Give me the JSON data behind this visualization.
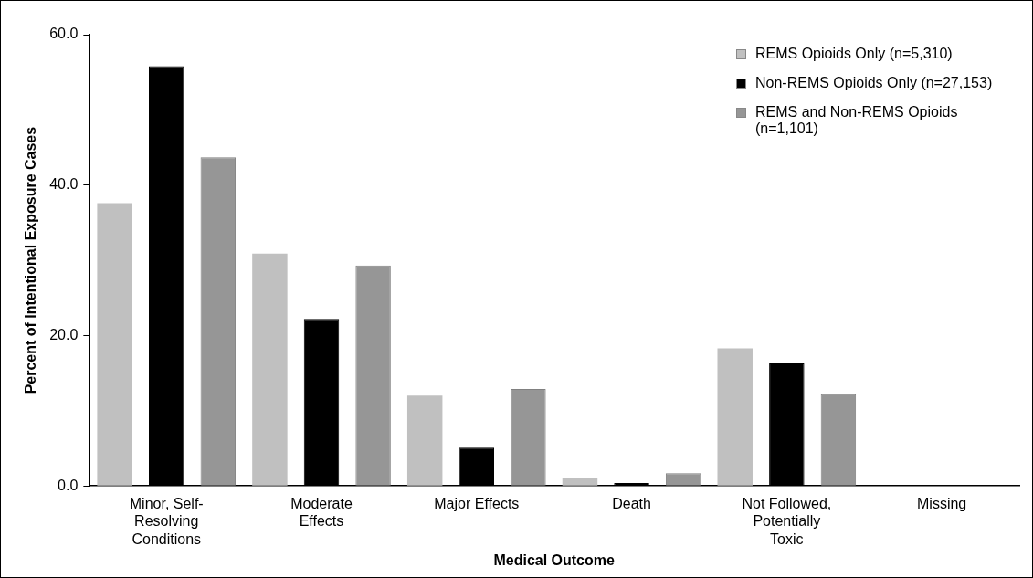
{
  "chart_data": {
    "type": "bar",
    "xlabel": "Medical Outcome",
    "ylabel": "Percent of Intentional Exposure Cases",
    "categories": [
      "Minor, Self-Resolving Conditions",
      "Moderate Effects",
      "Major Effects",
      "Death",
      "Not Followed, Potentially Toxic",
      "Missing"
    ],
    "series": [
      {
        "name": "REMS Opioids Only (n=5,310)",
        "color": "#c0c0c0",
        "values": [
          37.6,
          30.9,
          12.0,
          1.0,
          18.3,
          0
        ]
      },
      {
        "name": "Non-REMS Opioids Only (n=27,153)",
        "color": "#000000",
        "values": [
          55.8,
          22.2,
          5.1,
          0.4,
          16.3,
          0
        ]
      },
      {
        "name": "REMS and Non-REMS Opioids (n=1,101)",
        "color": "#969696",
        "values": [
          43.7,
          29.3,
          12.9,
          1.7,
          12.2,
          0
        ]
      }
    ],
    "ylim": [
      0,
      60
    ],
    "yticks": [
      {
        "value": 0,
        "label": "0.0"
      },
      {
        "value": 20,
        "label": "20.0"
      },
      {
        "value": 40,
        "label": "40.0"
      },
      {
        "value": 60,
        "label": "60.0"
      }
    ],
    "grid": false,
    "legend": "top right"
  }
}
